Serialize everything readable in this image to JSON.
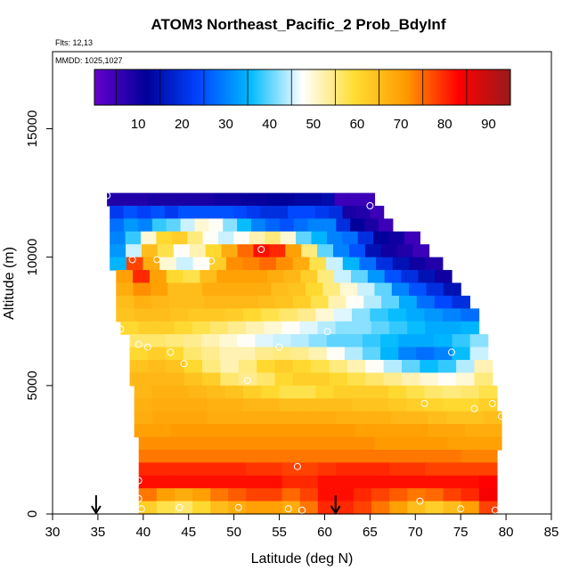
{
  "chart_data": {
    "type": "heatmap",
    "title": "ATOM3 Northeast_Pacific_2 Prob_BdyInf",
    "annotations": {
      "flights": "Flts: 12,13",
      "mmdd": "MMDD: 1025,1027"
    },
    "xlabel": "Latitude (deg N)",
    "ylabel": "Altitude (m)",
    "xlim": [
      30,
      85
    ],
    "ylim": [
      0,
      18000
    ],
    "x_ticks": [
      "30",
      "35",
      "40",
      "45",
      "50",
      "55",
      "60",
      "65",
      "70",
      "75",
      "80",
      "85"
    ],
    "y_ticks": [
      "0",
      "5000",
      "10000",
      "15000"
    ],
    "colorbar": {
      "range": [
        0,
        95
      ],
      "ticks": [
        "10",
        "20",
        "30",
        "40",
        "50",
        "60",
        "70",
        "80",
        "90"
      ],
      "colors": [
        "#6600cc",
        "#000099",
        "#0044ff",
        "#00bbff",
        "#ffffff",
        "#ffdd33",
        "#ff9900",
        "#ff0000",
        "#991a1a"
      ]
    },
    "grid_rows": [
      {
        "alt": 12250,
        "lat_min": 36.0,
        "lat_max": 65.5,
        "v": [
          8,
          8,
          8,
          9,
          9,
          9,
          9,
          9,
          10,
          10,
          11,
          11,
          12,
          12,
          13,
          13,
          14,
          5,
          5,
          5
        ]
      },
      {
        "alt": 11750,
        "lat_min": 36.3,
        "lat_max": 66.5,
        "v": [
          22,
          25,
          23,
          25,
          22,
          25,
          25,
          25,
          25,
          24,
          22,
          20,
          20,
          24,
          24,
          22,
          20,
          9,
          8,
          5
        ]
      },
      {
        "alt": 11250,
        "lat_min": 36.3,
        "lat_max": 67.5,
        "v": [
          28,
          32,
          30,
          38,
          40,
          45,
          50,
          48,
          42,
          36,
          30,
          27,
          25,
          28,
          30,
          30,
          20,
          12,
          9,
          5
        ]
      },
      {
        "alt": 10750,
        "lat_min": 36.3,
        "lat_max": 70.5,
        "v": [
          30,
          38,
          50,
          60,
          62,
          55,
          48,
          45,
          48,
          52,
          55,
          50,
          40,
          35,
          30,
          28,
          20,
          12,
          10,
          5
        ]
      },
      {
        "alt": 10250,
        "lat_min": 36.3,
        "lat_max": 71.5,
        "v": [
          32,
          45,
          65,
          58,
          48,
          52,
          60,
          68,
          75,
          82,
          80,
          70,
          55,
          40,
          30,
          25,
          15,
          10,
          8,
          5
        ]
      },
      {
        "alt": 9750,
        "lat_min": 36.3,
        "lat_max": 73.0,
        "v": [
          35,
          78,
          68,
          50,
          45,
          48,
          62,
          72,
          73,
          75,
          72,
          68,
          58,
          45,
          35,
          28,
          20,
          15,
          10,
          8
        ]
      },
      {
        "alt": 9250,
        "lat_min": 37.0,
        "lat_max": 74.0,
        "v": [
          70,
          80,
          70,
          60,
          58,
          65,
          70,
          70,
          70,
          68,
          66,
          62,
          55,
          45,
          40,
          32,
          25,
          20,
          15,
          10
        ]
      },
      {
        "alt": 8750,
        "lat_min": 37.0,
        "lat_max": 75.0,
        "v": [
          68,
          72,
          70,
          65,
          65,
          68,
          68,
          68,
          68,
          65,
          64,
          60,
          55,
          50,
          45,
          40,
          30,
          25,
          20,
          15
        ]
      },
      {
        "alt": 8250,
        "lat_min": 37.0,
        "lat_max": 76.0,
        "v": [
          65,
          67,
          66,
          65,
          65,
          66,
          66,
          66,
          65,
          64,
          62,
          58,
          52,
          48,
          44,
          40,
          34,
          28,
          24,
          20
        ]
      },
      {
        "alt": 7750,
        "lat_min": 37.0,
        "lat_max": 77.0,
        "v": [
          64,
          65,
          65,
          64,
          63,
          63,
          62,
          60,
          58,
          56,
          54,
          50,
          46,
          42,
          38,
          36,
          34,
          32,
          30,
          28
        ]
      },
      {
        "alt": 7250,
        "lat_min": 37.5,
        "lat_max": 77.0,
        "v": [
          60,
          62,
          62,
          60,
          58,
          56,
          54,
          52,
          50,
          48,
          46,
          44,
          42,
          42,
          40,
          38,
          36,
          34,
          34,
          35
        ]
      },
      {
        "alt": 6750,
        "lat_min": 38.5,
        "lat_max": 78.0,
        "v": [
          56,
          56,
          55,
          54,
          52,
          50,
          48,
          46,
          45,
          44,
          42,
          40,
          40,
          38,
          36,
          34,
          34,
          35,
          38,
          42
        ]
      },
      {
        "alt": 6250,
        "lat_min": 38.5,
        "lat_max": 78.0,
        "v": [
          60,
          62,
          60,
          56,
          54,
          52,
          52,
          54,
          55,
          54,
          52,
          48,
          44,
          40,
          35,
          30,
          28,
          30,
          36,
          45
        ]
      },
      {
        "alt": 5750,
        "lat_min": 38.5,
        "lat_max": 78.5,
        "v": [
          64,
          65,
          64,
          60,
          55,
          52,
          55,
          60,
          62,
          60,
          58,
          55,
          52,
          48,
          44,
          40,
          36,
          38,
          44,
          52
        ]
      },
      {
        "alt": 5250,
        "lat_min": 38.5,
        "lat_max": 78.5,
        "v": [
          66,
          66,
          66,
          64,
          62,
          56,
          54,
          56,
          60,
          62,
          62,
          60,
          58,
          56,
          54,
          52,
          50,
          48,
          50,
          55
        ]
      },
      {
        "alt": 4750,
        "lat_min": 39.0,
        "lat_max": 79.0,
        "v": [
          66,
          67,
          67,
          66,
          65,
          64,
          62,
          60,
          58,
          58,
          60,
          62,
          62,
          62,
          60,
          58,
          56,
          55,
          56,
          58
        ]
      },
      {
        "alt": 4250,
        "lat_min": 39.0,
        "lat_max": 79.0,
        "v": [
          67,
          68,
          68,
          68,
          67,
          67,
          66,
          66,
          65,
          65,
          65,
          65,
          64,
          64,
          63,
          62,
          61,
          60,
          60,
          62
        ]
      },
      {
        "alt": 3750,
        "lat_min": 39.0,
        "lat_max": 79.5,
        "v": [
          68,
          69,
          69,
          69,
          68,
          68,
          68,
          68,
          68,
          68,
          68,
          67,
          67,
          67,
          66,
          66,
          65,
          64,
          64,
          65
        ]
      },
      {
        "alt": 3250,
        "lat_min": 39.0,
        "lat_max": 79.5,
        "v": [
          70,
          70,
          71,
          71,
          71,
          71,
          71,
          71,
          71,
          71,
          71,
          71,
          70,
          70,
          70,
          70,
          69,
          69,
          68,
          68
        ]
      },
      {
        "alt": 2750,
        "lat_min": 39.5,
        "lat_max": 79.5,
        "v": [
          72,
          72,
          72,
          72,
          72,
          72,
          72,
          72,
          72,
          72,
          72,
          72,
          72,
          71,
          71,
          71,
          71,
          70,
          70,
          70
        ]
      },
      {
        "alt": 2250,
        "lat_min": 39.5,
        "lat_max": 79.0,
        "v": [
          74,
          74,
          74,
          74,
          74,
          74,
          74,
          74,
          74,
          74,
          74,
          74,
          74,
          74,
          74,
          74,
          74,
          74,
          73,
          73
        ]
      },
      {
        "alt": 1750,
        "lat_min": 39.5,
        "lat_max": 79.0,
        "v": [
          80,
          80,
          80,
          80,
          80,
          80,
          79,
          79,
          78,
          78,
          79,
          80,
          80,
          80,
          79,
          79,
          78,
          78,
          78,
          78
        ]
      },
      {
        "alt": 1250,
        "lat_min": 39.5,
        "lat_max": 79.0,
        "v": [
          82,
          82,
          82,
          82,
          82,
          82,
          82,
          82,
          80,
          80,
          82,
          82,
          82,
          82,
          82,
          82,
          82,
          82,
          82,
          83
        ]
      },
      {
        "alt": 750,
        "lat_min": 39.5,
        "lat_max": 79.0,
        "v": [
          74,
          70,
          68,
          70,
          74,
          76,
          78,
          78,
          75,
          78,
          82,
          82,
          80,
          78,
          76,
          74,
          75,
          78,
          80,
          84
        ]
      },
      {
        "alt": 250,
        "lat_min": 39.5,
        "lat_max": 79.0,
        "v": [
          62,
          58,
          56,
          60,
          65,
          68,
          70,
          70,
          68,
          74,
          80,
          80,
          78,
          74,
          70,
          65,
          62,
          65,
          70,
          78
        ]
      }
    ],
    "sample_points": [
      [
        36,
        12400
      ],
      [
        65,
        12000
      ],
      [
        72,
        10300
      ],
      [
        53,
        10300
      ],
      [
        41.5,
        9900
      ],
      [
        47.5,
        9850
      ],
      [
        38.8,
        9900
      ],
      [
        37.5,
        7200
      ],
      [
        60.3,
        7100
      ],
      [
        77.5,
        7500
      ],
      [
        39.5,
        6600
      ],
      [
        40.5,
        6500
      ],
      [
        43,
        6300
      ],
      [
        55,
        6500
      ],
      [
        74,
        6300
      ],
      [
        44.5,
        5850
      ],
      [
        51.5,
        5200
      ],
      [
        38.5,
        4600
      ],
      [
        71,
        4300
      ],
      [
        76.5,
        4100
      ],
      [
        78.5,
        4300
      ],
      [
        79.5,
        3800
      ],
      [
        57,
        1850
      ],
      [
        39.5,
        1300
      ],
      [
        39.5,
        600
      ],
      [
        70.5,
        500
      ],
      [
        39.8,
        200
      ],
      [
        44,
        250
      ],
      [
        50.5,
        250
      ],
      [
        56,
        200
      ],
      [
        57.5,
        150
      ],
      [
        75,
        200
      ],
      [
        78.8,
        150
      ]
    ],
    "markers_lat": [
      34.8,
      61.2
    ],
    "grid": false,
    "legend": "colorbar-top"
  }
}
